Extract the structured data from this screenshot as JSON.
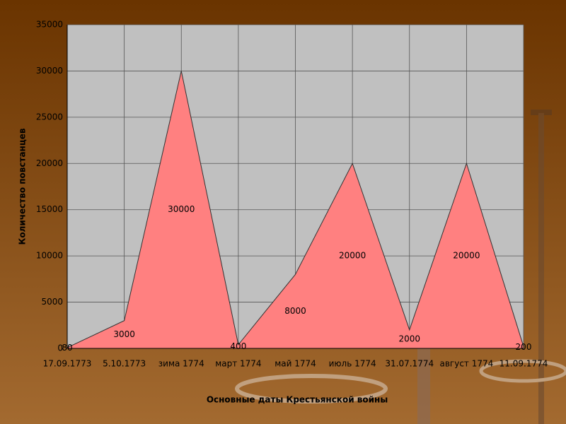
{
  "chart_data": {
    "type": "area",
    "x_label": "Основные даты Крестьянской войны",
    "y_label": "Количество повстанцев",
    "categories": [
      "17.09.1773",
      "5.10.1773",
      "зима 1774",
      "март 1774",
      "май 1774",
      "июль 1774",
      "31.07.1774",
      "август 1774",
      "11.09.1774"
    ],
    "values": [
      80,
      3000,
      30000,
      400,
      8000,
      20000,
      2000,
      20000,
      200
    ],
    "color": "#ff8080",
    "ylim": [
      0,
      35000
    ],
    "yticks": [
      0,
      5000,
      10000,
      15000,
      20000,
      25000,
      30000,
      35000
    ],
    "grid": true
  }
}
